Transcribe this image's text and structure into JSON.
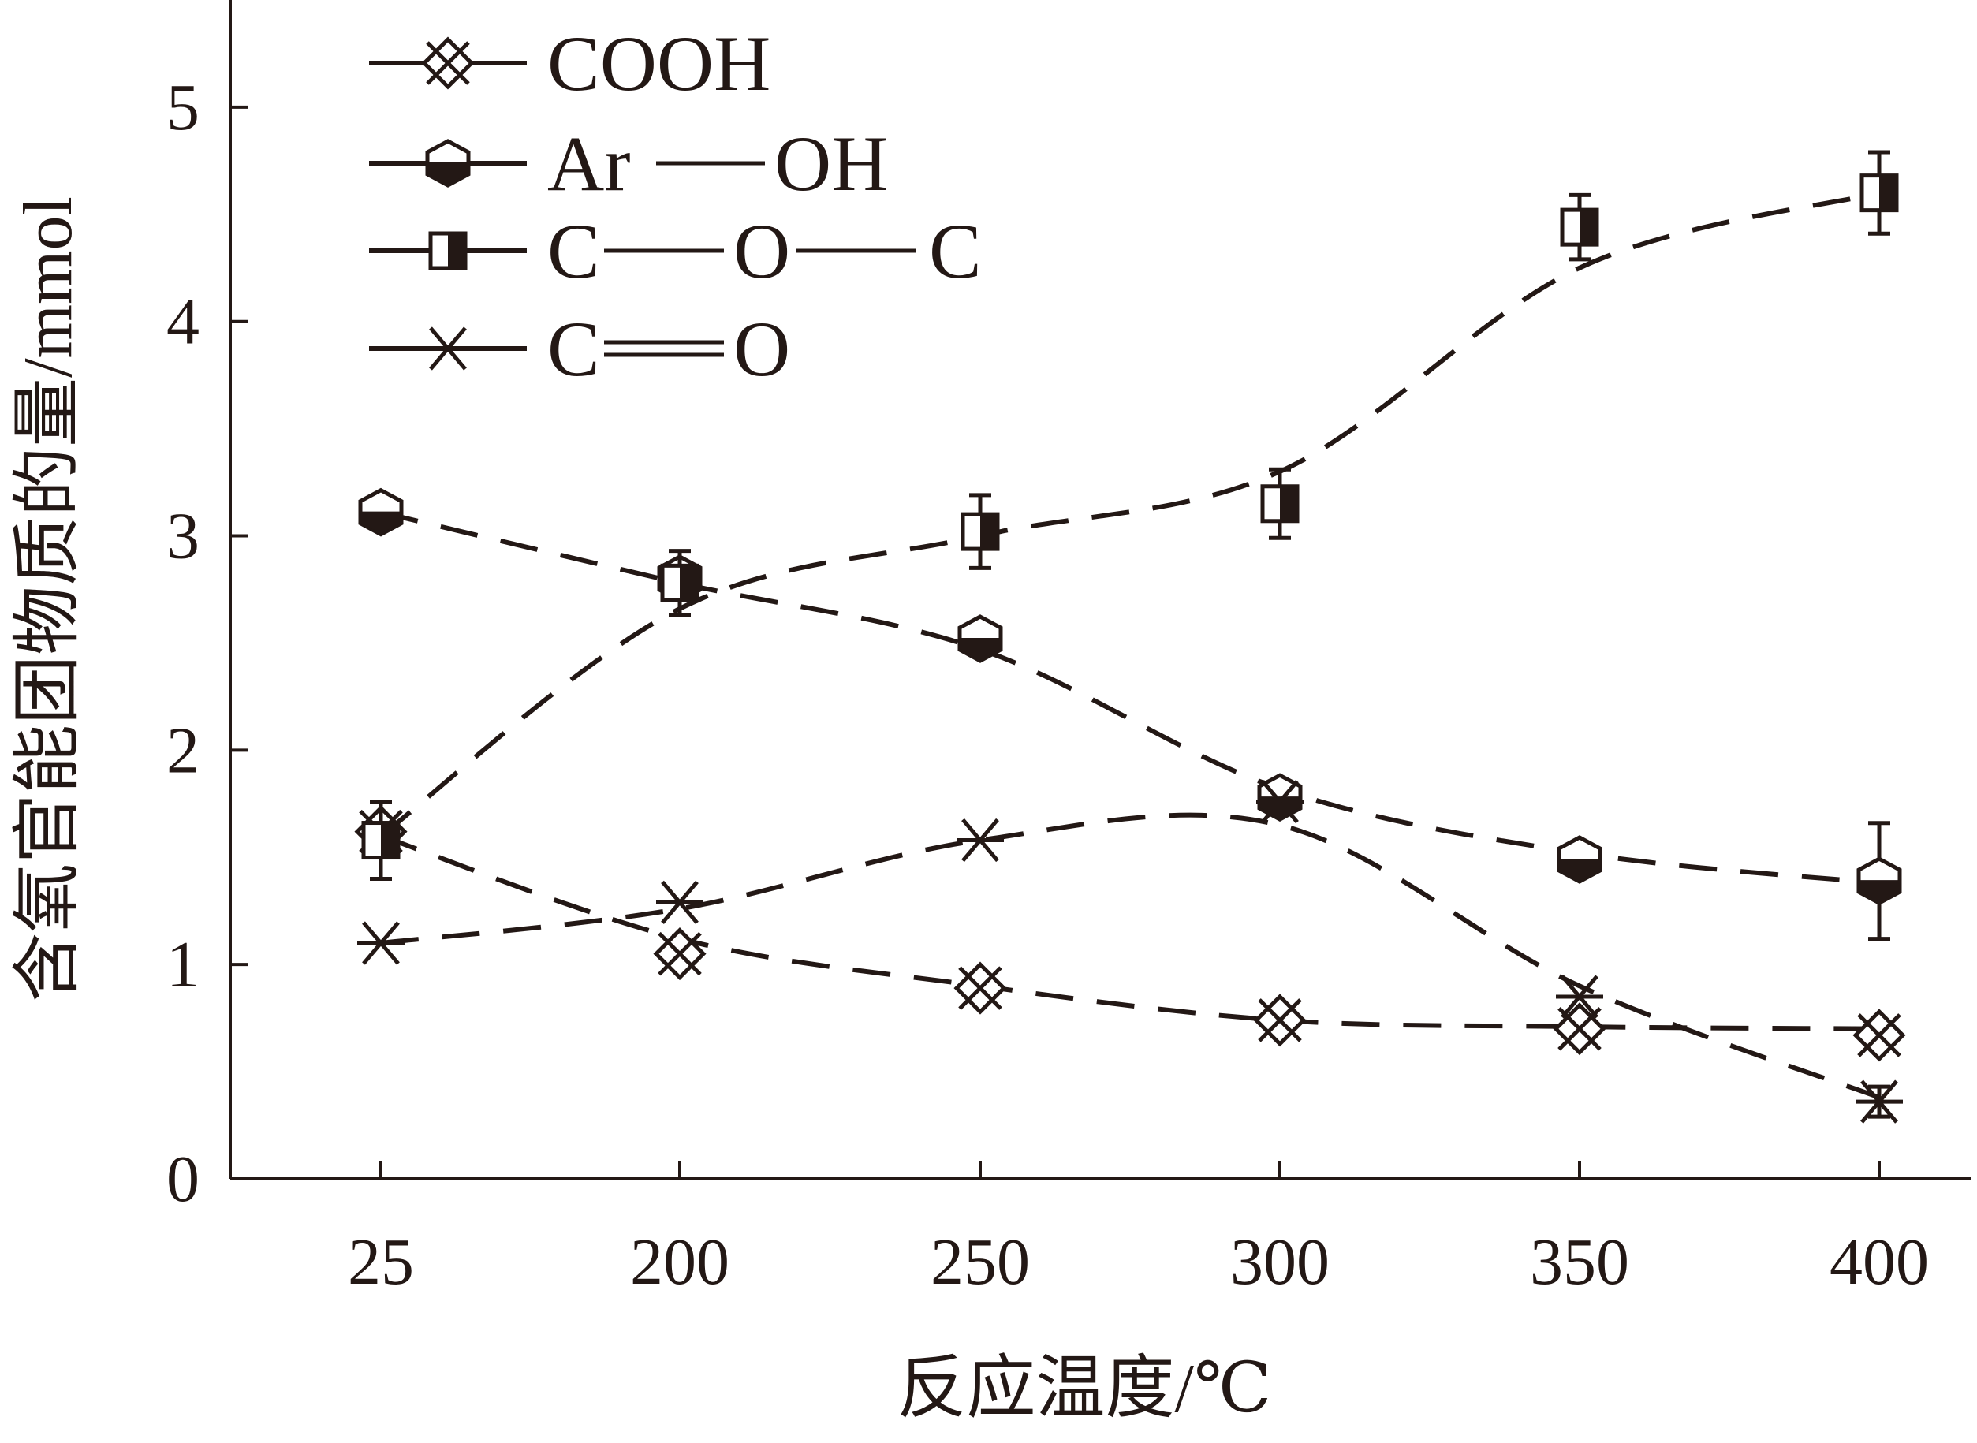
{
  "chart_data": {
    "type": "line",
    "title": "",
    "xlabel": "反应温度/℃",
    "ylabel": "含氧官能团物质的量/mmol",
    "categories": [
      "25",
      "200",
      "250",
      "300",
      "350",
      "400"
    ],
    "ylim": [
      0,
      5.5
    ],
    "yticks": [
      "0",
      "1",
      "2",
      "3",
      "4",
      "5"
    ],
    "grid": false,
    "legend_position": "top-left",
    "series": [
      {
        "name": "COOH",
        "marker": "crossed-diamond",
        "values": [
          1.62,
          1.05,
          0.89,
          0.74,
          0.7,
          0.67
        ],
        "errors": [
          0.0,
          0.0,
          0.0,
          0.0,
          0.0,
          0.0
        ],
        "curve": [
          [
            25,
            1.6
          ],
          [
            200,
            1.12
          ],
          [
            250,
            0.9
          ],
          [
            300,
            0.74
          ],
          [
            350,
            0.71
          ],
          [
            400,
            0.7
          ]
        ]
      },
      {
        "name": "Ar—OH",
        "marker": "half-filled-hexagon",
        "values": [
          3.11,
          2.8,
          2.52,
          1.78,
          1.49,
          1.39
        ],
        "errors": [
          0.03,
          0.0,
          0.0,
          0.05,
          0.0,
          0.27
        ],
        "curve": [
          [
            25,
            3.11
          ],
          [
            200,
            2.78
          ],
          [
            250,
            2.47
          ],
          [
            300,
            1.82
          ],
          [
            350,
            1.52
          ],
          [
            400,
            1.38
          ]
        ]
      },
      {
        "name": "C—O—C",
        "marker": "half-filled-square",
        "values": [
          1.58,
          2.78,
          3.02,
          3.15,
          4.44,
          4.6
        ],
        "errors": [
          0.18,
          0.15,
          0.17,
          0.16,
          0.15,
          0.19
        ],
        "curve": [
          [
            25,
            1.6
          ],
          [
            200,
            2.66
          ],
          [
            250,
            3.0
          ],
          [
            300,
            3.3
          ],
          [
            350,
            4.25
          ],
          [
            400,
            4.6
          ]
        ]
      },
      {
        "name": "C==O",
        "marker": "asterisk",
        "values": [
          1.1,
          1.29,
          1.58,
          1.76,
          0.85,
          0.36
        ],
        "errors": [
          0.0,
          0.0,
          0.0,
          0.0,
          0.0,
          0.07
        ],
        "curve": [
          [
            25,
            1.1
          ],
          [
            200,
            1.26
          ],
          [
            250,
            1.58
          ],
          [
            300,
            1.65
          ],
          [
            350,
            0.9
          ],
          [
            400,
            0.38
          ]
        ]
      }
    ],
    "legend": [
      {
        "series": 0,
        "segments": [
          "COOH"
        ]
      },
      {
        "series": 1,
        "segments": [
          "Ar",
          "OH"
        ],
        "bond": "single"
      },
      {
        "series": 2,
        "segments": [
          "C",
          "O",
          "C"
        ],
        "bond": "single"
      },
      {
        "series": 3,
        "segments": [
          "C",
          "O"
        ],
        "bond": "double"
      }
    ],
    "colors": {
      "ink": "#231815",
      "background": "#ffffff"
    }
  }
}
